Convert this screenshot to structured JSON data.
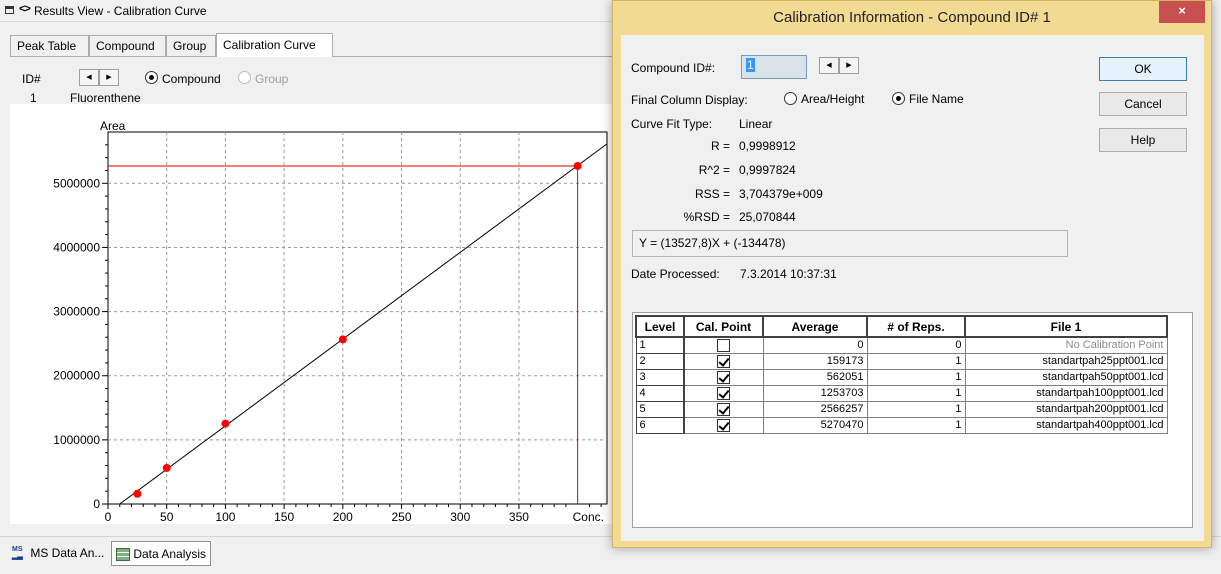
{
  "results_window": {
    "title": "Results View - Calibration Curve",
    "tabs": [
      "Peak Table",
      "Compound",
      "Group",
      "Calibration Curve"
    ],
    "active_tab": "Calibration Curve",
    "id_label": "ID#",
    "radio_compound": "Compound",
    "radio_group": "Group",
    "compound_row": {
      "id": "1",
      "name": "Fluorenthene"
    }
  },
  "chart_data": {
    "type": "scatter",
    "ylabel": "Area",
    "xlabel": "Conc.",
    "xlim": [
      0,
      425
    ],
    "ylim": [
      0,
      5800000
    ],
    "x_ticks": [
      0,
      50,
      100,
      150,
      200,
      250,
      300,
      350
    ],
    "y_ticks": [
      0,
      1000000,
      2000000,
      3000000,
      4000000,
      5000000
    ],
    "points": [
      {
        "x": 25,
        "y": 159173
      },
      {
        "x": 50,
        "y": 562051
      },
      {
        "x": 100,
        "y": 1253703
      },
      {
        "x": 200,
        "y": 2566257
      },
      {
        "x": 400,
        "y": 5270470
      }
    ],
    "fit_line": {
      "slope": 13527.8,
      "intercept": -134478
    },
    "crosshair": {
      "x": 400,
      "y": 5270470
    },
    "point_color": "#ff0000",
    "crosshair_color": "#d40000",
    "line_color": "#000000"
  },
  "taskbar": {
    "items": [
      "MS Data An...",
      "Data Analysis"
    ],
    "active": "Data Analysis"
  },
  "dialog": {
    "title": "Calibration Information - Compound ID# 1",
    "close_glyph": "×",
    "compound_id_label": "Compound ID#:",
    "compound_id_value": "1",
    "final_column_label": "Final Column Display:",
    "opt_area": "Area/Height",
    "opt_file": "File Name",
    "curve_fit_label": "Curve Fit Type:",
    "curve_fit_value": "Linear",
    "stats": [
      {
        "label": "R =",
        "value": "0,9998912"
      },
      {
        "label": "R^2 =",
        "value": "0,9997824"
      },
      {
        "label": "RSS =",
        "value": "3,704379e+009"
      },
      {
        "label": "%RSD =",
        "value": "25,070844"
      }
    ],
    "equation": "Y = (13527,8)X + (-134478)",
    "date_label": "Date Processed:",
    "date_value": "7.3.2014 10:37:31",
    "buttons": {
      "ok": "OK",
      "cancel": "Cancel",
      "help": "Help"
    },
    "accent_color": "#f3da93",
    "table": {
      "headers": [
        "Level",
        "Cal. Point",
        "Average",
        "# of Reps.",
        "File 1"
      ],
      "rows": [
        {
          "level": "1",
          "cal": false,
          "average": "0",
          "reps": "0",
          "file": "No Calibration Point"
        },
        {
          "level": "2",
          "cal": true,
          "average": "159173",
          "reps": "1",
          "file": "standartpah25ppt001.lcd"
        },
        {
          "level": "3",
          "cal": true,
          "average": "562051",
          "reps": "1",
          "file": "standartpah50ppt001.lcd"
        },
        {
          "level": "4",
          "cal": true,
          "average": "1253703",
          "reps": "1",
          "file": "standartpah100ppt001.lcd"
        },
        {
          "level": "5",
          "cal": true,
          "average": "2566257",
          "reps": "1",
          "file": "standartpah200ppt001.lcd"
        },
        {
          "level": "6",
          "cal": true,
          "average": "5270470",
          "reps": "1",
          "file": "standartpah400ppt001.lcd"
        }
      ]
    }
  }
}
